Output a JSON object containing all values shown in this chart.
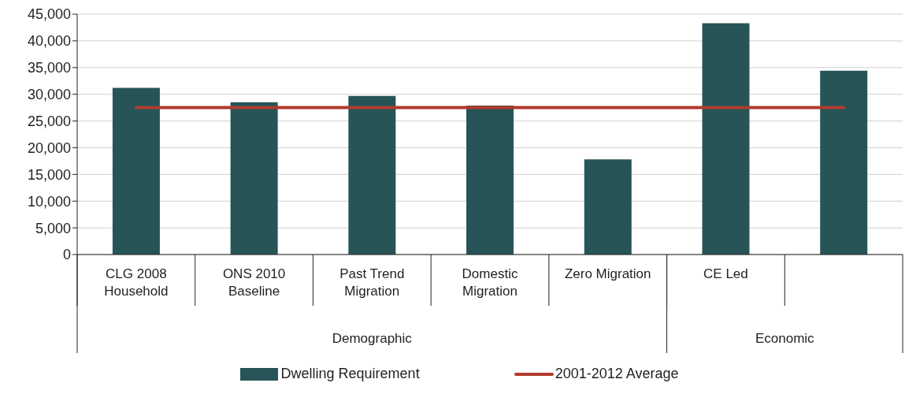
{
  "chart_data": {
    "type": "bar",
    "categories": [
      "CLG 2008 Household",
      "ONS 2010 Baseline",
      "Past Trend Migration",
      "Domestic Migration",
      "Zero Migration",
      "CE Led",
      null
    ],
    "series": [
      {
        "name": "Dwelling Requirement",
        "color": "#265457",
        "values": [
          31200,
          28500,
          29700,
          27900,
          17800,
          43300,
          34400
        ]
      }
    ],
    "ref_lines": [
      {
        "axis": "y",
        "value": 27500,
        "label": "2001-2012 Average",
        "color": "#b03a2e",
        "line_style": "solid"
      }
    ],
    "annotations": [
      "Demographic",
      "Economic"
    ],
    "ylim": [
      0,
      45000
    ],
    "yticks": [
      0,
      {
        "value": 5000,
        "label": "5,000"
      },
      {
        "value": 10000,
        "label": "10,000"
      },
      {
        "value": 15000,
        "label": "15,000"
      },
      {
        "value": 20000,
        "label": "20,000"
      },
      {
        "value": 25000,
        "label": "25,000"
      },
      {
        "value": 30000,
        "label": "30,000"
      },
      {
        "value": 35000,
        "label": "35,000"
      },
      {
        "value": 40000,
        "label": "40,000"
      },
      {
        "value": 45000,
        "label": "45,000"
      }
    ],
    "grid": "y",
    "legend": "bottom"
  }
}
